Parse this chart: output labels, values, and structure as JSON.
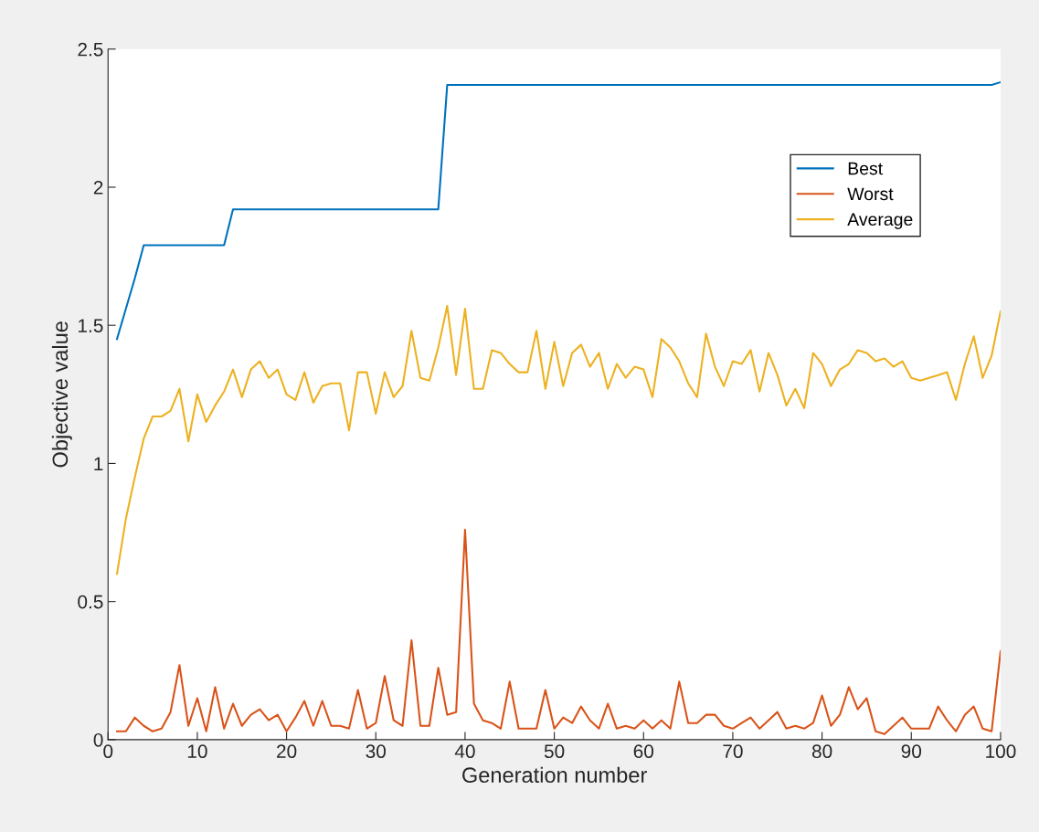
{
  "chart_data": {
    "type": "line",
    "xlabel": "Generation number",
    "ylabel": "Objective value",
    "xlim": [
      0,
      100
    ],
    "ylim": [
      0,
      2.5
    ],
    "xticks": [
      0,
      10,
      20,
      30,
      40,
      50,
      60,
      70,
      80,
      90,
      100
    ],
    "yticks": [
      0,
      0.5,
      1,
      1.5,
      2,
      2.5
    ],
    "grid": false,
    "legend": "top right",
    "marker": "none",
    "line_style": "solid",
    "series": [
      {
        "name": "Best",
        "color": "#0072bd",
        "x": [
          1,
          2,
          3,
          4,
          13,
          14,
          37,
          38,
          99,
          100
        ],
        "values": [
          1.45,
          1.56,
          1.67,
          1.79,
          1.79,
          1.92,
          1.92,
          2.37,
          2.37,
          2.38
        ]
      },
      {
        "name": "Worst",
        "color": "#d95319",
        "x": [
          1,
          2,
          3,
          4,
          5,
          6,
          7,
          8,
          9,
          10,
          11,
          12,
          13,
          14,
          15,
          16,
          17,
          18,
          19,
          20,
          21,
          22,
          23,
          24,
          25,
          26,
          27,
          28,
          29,
          30,
          31,
          32,
          33,
          34,
          35,
          36,
          37,
          38,
          39,
          40,
          41,
          42,
          43,
          44,
          45,
          46,
          47,
          48,
          49,
          50,
          51,
          52,
          53,
          54,
          55,
          56,
          57,
          58,
          59,
          60,
          61,
          62,
          63,
          64,
          65,
          66,
          67,
          68,
          69,
          70,
          71,
          72,
          73,
          74,
          75,
          76,
          77,
          78,
          79,
          80,
          81,
          82,
          83,
          84,
          85,
          86,
          87,
          88,
          89,
          90,
          91,
          92,
          93,
          94,
          95,
          96,
          97,
          98,
          99,
          100
        ],
        "values": [
          0.03,
          0.03,
          0.08,
          0.05,
          0.03,
          0.04,
          0.1,
          0.27,
          0.05,
          0.15,
          0.03,
          0.19,
          0.04,
          0.13,
          0.05,
          0.09,
          0.11,
          0.07,
          0.09,
          0.03,
          0.08,
          0.14,
          0.05,
          0.14,
          0.05,
          0.05,
          0.04,
          0.18,
          0.04,
          0.06,
          0.23,
          0.07,
          0.05,
          0.36,
          0.05,
          0.05,
          0.26,
          0.09,
          0.1,
          0.76,
          0.13,
          0.07,
          0.06,
          0.04,
          0.21,
          0.04,
          0.04,
          0.04,
          0.18,
          0.04,
          0.08,
          0.06,
          0.12,
          0.07,
          0.04,
          0.13,
          0.04,
          0.05,
          0.04,
          0.07,
          0.04,
          0.07,
          0.04,
          0.21,
          0.06,
          0.06,
          0.09,
          0.09,
          0.05,
          0.04,
          0.06,
          0.08,
          0.04,
          0.07,
          0.1,
          0.04,
          0.05,
          0.04,
          0.06,
          0.16,
          0.05,
          0.09,
          0.19,
          0.11,
          0.15,
          0.03,
          0.02,
          0.05,
          0.08,
          0.04,
          0.04,
          0.04,
          0.12,
          0.07,
          0.03,
          0.09,
          0.12,
          0.04,
          0.03,
          0.32
        ]
      },
      {
        "name": "Average",
        "color": "#edb120",
        "x": [
          1,
          2,
          3,
          4,
          5,
          6,
          7,
          8,
          9,
          10,
          11,
          12,
          13,
          14,
          15,
          16,
          17,
          18,
          19,
          20,
          21,
          22,
          23,
          24,
          25,
          26,
          27,
          28,
          29,
          30,
          31,
          32,
          33,
          34,
          35,
          36,
          37,
          38,
          39,
          40,
          41,
          42,
          43,
          44,
          45,
          46,
          47,
          48,
          49,
          50,
          51,
          52,
          53,
          54,
          55,
          56,
          57,
          58,
          59,
          60,
          61,
          62,
          63,
          64,
          65,
          66,
          67,
          68,
          69,
          70,
          71,
          72,
          73,
          74,
          75,
          76,
          77,
          78,
          79,
          80,
          81,
          82,
          83,
          84,
          85,
          86,
          87,
          88,
          89,
          90,
          91,
          92,
          93,
          94,
          95,
          96,
          97,
          98,
          99,
          100
        ],
        "values": [
          0.6,
          0.8,
          0.95,
          1.09,
          1.17,
          1.17,
          1.19,
          1.27,
          1.08,
          1.25,
          1.15,
          1.21,
          1.26,
          1.34,
          1.24,
          1.34,
          1.37,
          1.31,
          1.34,
          1.25,
          1.23,
          1.33,
          1.22,
          1.28,
          1.29,
          1.29,
          1.12,
          1.33,
          1.33,
          1.18,
          1.33,
          1.24,
          1.28,
          1.48,
          1.31,
          1.3,
          1.42,
          1.57,
          1.32,
          1.56,
          1.27,
          1.27,
          1.41,
          1.4,
          1.36,
          1.33,
          1.33,
          1.48,
          1.27,
          1.44,
          1.28,
          1.4,
          1.43,
          1.35,
          1.4,
          1.27,
          1.36,
          1.31,
          1.35,
          1.34,
          1.24,
          1.45,
          1.42,
          1.37,
          1.29,
          1.24,
          1.47,
          1.35,
          1.28,
          1.37,
          1.36,
          1.41,
          1.26,
          1.4,
          1.32,
          1.21,
          1.27,
          1.2,
          1.4,
          1.36,
          1.28,
          1.34,
          1.36,
          1.41,
          1.4,
          1.37,
          1.38,
          1.35,
          1.37,
          1.31,
          1.3,
          1.31,
          1.32,
          1.33,
          1.23,
          1.36,
          1.46,
          1.31,
          1.39,
          1.55
        ]
      }
    ]
  }
}
